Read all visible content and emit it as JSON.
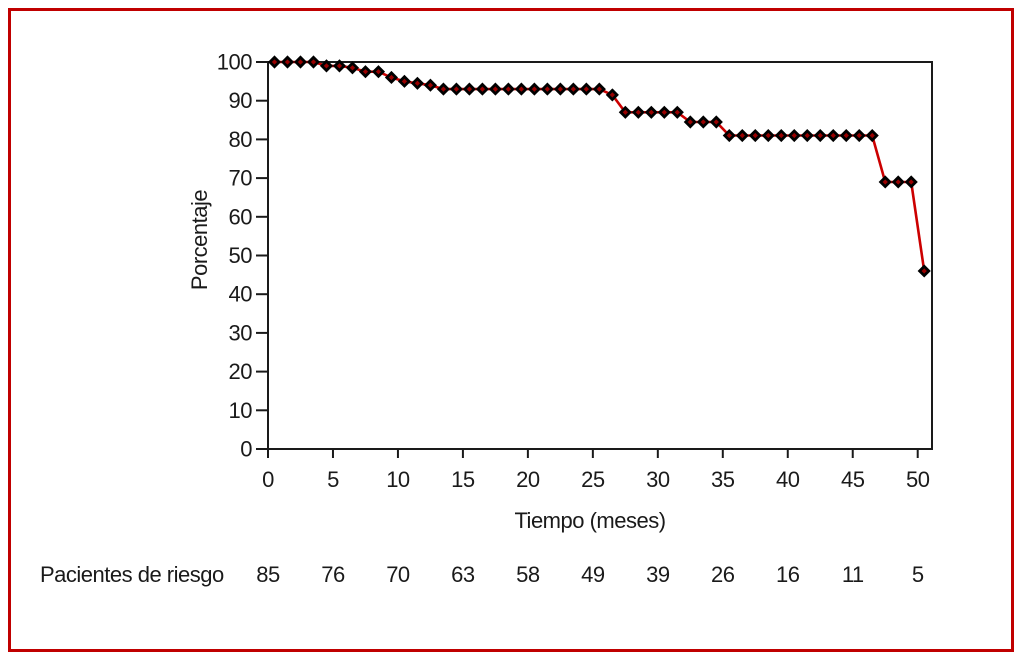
{
  "figure": {
    "border_color": "#c00000",
    "background_color": "#ffffff",
    "axis_color": "#1a1a1a",
    "text_color": "#1a1a1a"
  },
  "chart_data": {
    "type": "line",
    "xlabel": "Tiempo (meses)",
    "ylabel": "Porcentaje",
    "xlim": [
      0,
      51.1
    ],
    "ylim": [
      0,
      100
    ],
    "xticks": [
      0,
      5,
      10,
      15,
      20,
      25,
      30,
      35,
      40,
      45,
      50
    ],
    "yticks": [
      0,
      10,
      20,
      30,
      40,
      50,
      60,
      70,
      80,
      90,
      100
    ],
    "grid": false,
    "legend": "none",
    "series": [
      {
        "line_color": "#cc0000",
        "marker": "diamond",
        "marker_fill": "#990000",
        "marker_stroke": "#000000",
        "points": [
          [
            0.5,
            100
          ],
          [
            1.5,
            100
          ],
          [
            2.5,
            100
          ],
          [
            3.5,
            100
          ],
          [
            4.5,
            99
          ],
          [
            5.5,
            99
          ],
          [
            6.5,
            98.5
          ],
          [
            7.5,
            97.5
          ],
          [
            8.5,
            97.5
          ],
          [
            9.5,
            96
          ],
          [
            10.5,
            95
          ],
          [
            11.5,
            94.5
          ],
          [
            12.5,
            94
          ],
          [
            13.5,
            93
          ],
          [
            14.5,
            93
          ],
          [
            15.5,
            93
          ],
          [
            16.5,
            93
          ],
          [
            17.5,
            93
          ],
          [
            18.5,
            93
          ],
          [
            19.5,
            93
          ],
          [
            20.5,
            93
          ],
          [
            21.5,
            93
          ],
          [
            22.5,
            93
          ],
          [
            23.5,
            93
          ],
          [
            24.5,
            93
          ],
          [
            25.5,
            93
          ],
          [
            26.5,
            91.5
          ],
          [
            27.5,
            87
          ],
          [
            28.5,
            87
          ],
          [
            29.5,
            87
          ],
          [
            30.5,
            87
          ],
          [
            31.5,
            87
          ],
          [
            32.5,
            84.5
          ],
          [
            33.5,
            84.5
          ],
          [
            34.5,
            84.5
          ],
          [
            35.5,
            81
          ],
          [
            36.5,
            81
          ],
          [
            37.5,
            81
          ],
          [
            38.5,
            81
          ],
          [
            39.5,
            81
          ],
          [
            40.5,
            81
          ],
          [
            41.5,
            81
          ],
          [
            42.5,
            81
          ],
          [
            43.5,
            81
          ],
          [
            44.5,
            81
          ],
          [
            45.5,
            81
          ],
          [
            46.5,
            81
          ],
          [
            47.5,
            69
          ],
          [
            48.5,
            69
          ],
          [
            49.5,
            69
          ],
          [
            50.5,
            46
          ]
        ]
      }
    ],
    "risk_row": {
      "label": "Pacientes de riesgo",
      "x": [
        0,
        5,
        10,
        15,
        20,
        25,
        30,
        35,
        40,
        45,
        50
      ],
      "values": [
        85,
        76,
        70,
        63,
        58,
        49,
        39,
        26,
        16,
        11,
        5
      ]
    }
  }
}
